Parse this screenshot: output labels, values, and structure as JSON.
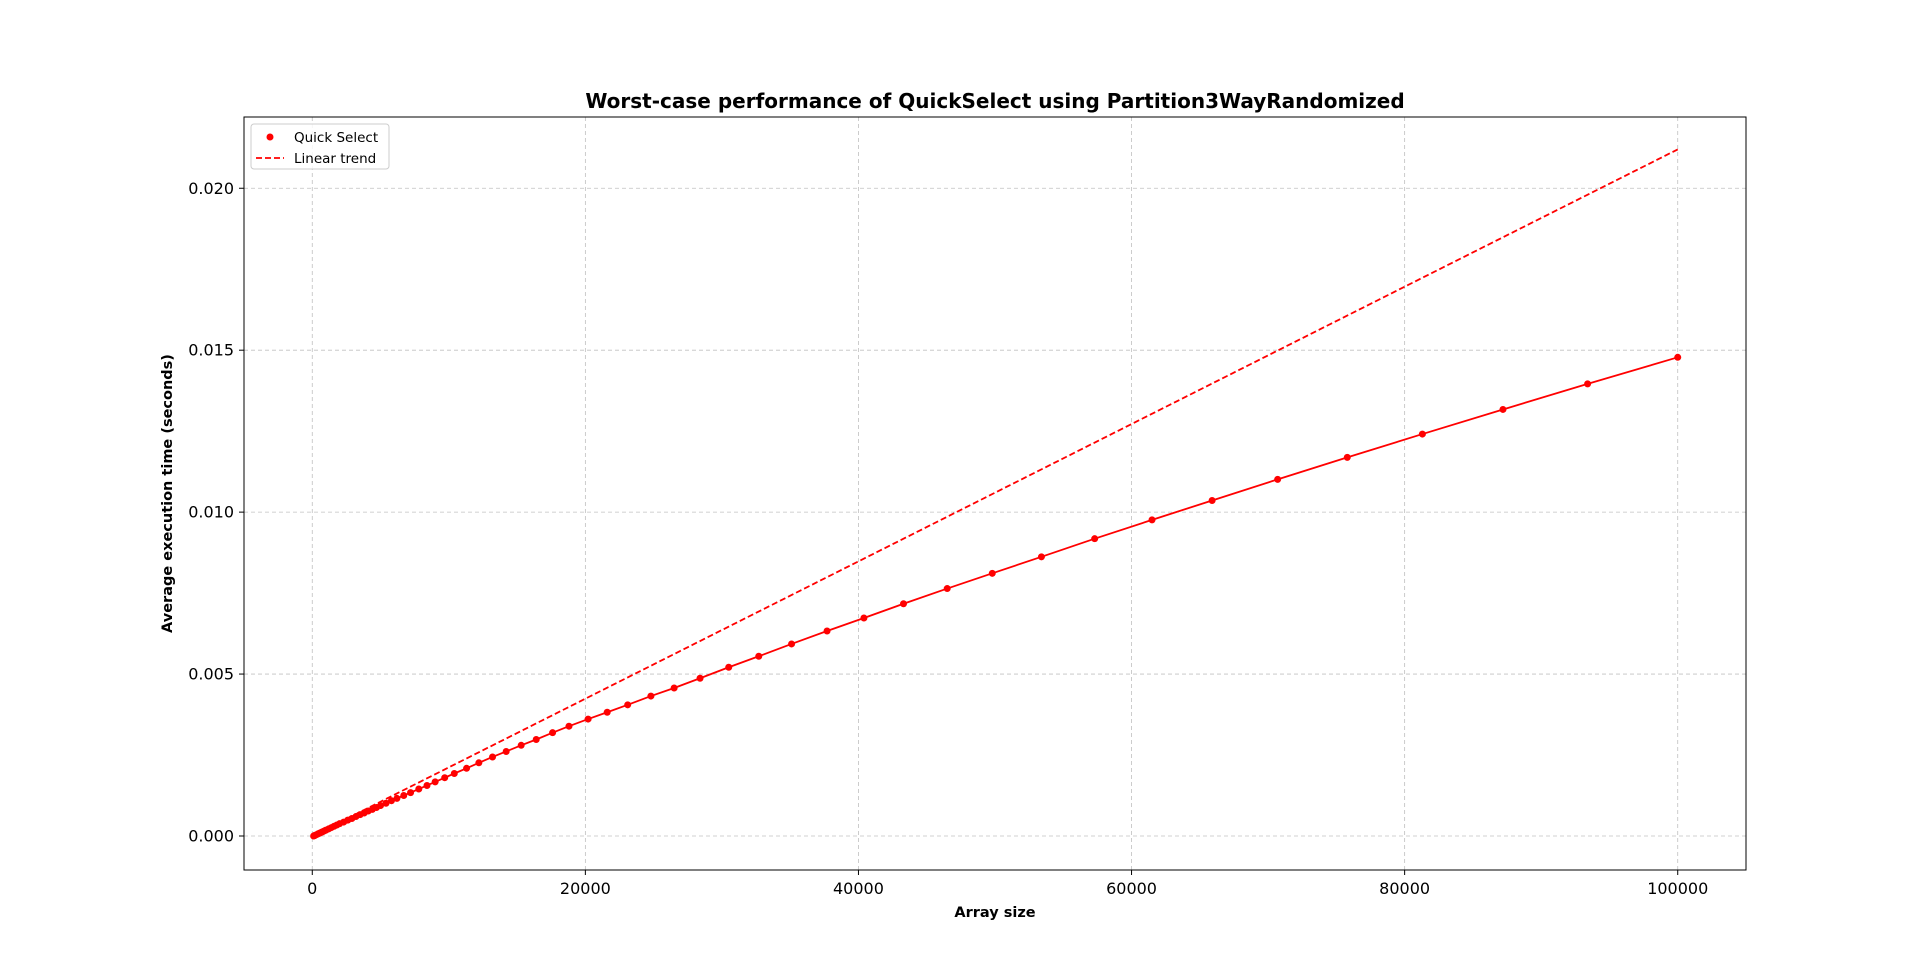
{
  "chart_data": {
    "type": "line",
    "title": "Worst-case performance of QuickSelect using Partition3WayRandomized",
    "xlabel": "Array size",
    "ylabel": "Average execution time (seconds)",
    "xlim": [
      -5000,
      105000
    ],
    "ylim": [
      -0.00105,
      0.0222
    ],
    "xticks": [
      0,
      20000,
      40000,
      60000,
      80000,
      100000
    ],
    "xtick_labels": [
      "0",
      "20000",
      "40000",
      "60000",
      "80000",
      "100000"
    ],
    "yticks": [
      0.0,
      0.005,
      0.01,
      0.015,
      0.02
    ],
    "ytick_labels": [
      "0.000",
      "0.005",
      "0.010",
      "0.015",
      "0.020"
    ],
    "grid": true,
    "legend_position": "top-left",
    "legend": [
      "Quick Select",
      "Linear trend"
    ],
    "series": [
      {
        "name": "Quick Select",
        "style": "line-with-markers",
        "color": "#ff0000",
        "x": [
          100,
          150,
          200,
          300,
          400,
          500,
          600,
          700,
          800,
          900,
          1000,
          1200,
          1400,
          1600,
          1800,
          2000,
          2300,
          2600,
          2900,
          3200,
          3500,
          3800,
          4100,
          4400,
          4700,
          5000,
          5400,
          5800,
          6200,
          6700,
          7200,
          7800,
          8400,
          9000,
          9700,
          10400,
          11300,
          12200,
          13200,
          14200,
          15300,
          16400,
          17600,
          18800,
          20200,
          21600,
          23100,
          24800,
          26500,
          28400,
          30500,
          32700,
          35100,
          37700,
          40400,
          43300,
          46500,
          49800,
          53400,
          57300,
          61500,
          65900,
          70700,
          75800,
          81300,
          87200,
          93400,
          100000
        ],
        "y": [
          0.0,
          1e-05,
          2e-05,
          4e-05,
          6e-05,
          8e-05,
          0.0001,
          0.00012,
          0.00014,
          0.00016,
          0.00018,
          0.00022,
          0.00026,
          0.0003,
          0.00034,
          0.00038,
          0.00043,
          0.00049,
          0.00054,
          0.0006,
          0.00066,
          0.00071,
          0.00077,
          0.00082,
          0.00088,
          0.00094,
          0.00101,
          0.00109,
          0.00116,
          0.00125,
          0.00134,
          0.00145,
          0.00156,
          0.00167,
          0.0018,
          0.00193,
          0.00209,
          0.00226,
          0.00244,
          0.00261,
          0.0028,
          0.00298,
          0.00319,
          0.00339,
          0.00361,
          0.00382,
          0.00405,
          0.00432,
          0.00457,
          0.00487,
          0.00521,
          0.00555,
          0.00593,
          0.00633,
          0.00673,
          0.00717,
          0.00764,
          0.00811,
          0.00862,
          0.00918,
          0.00976,
          0.01036,
          0.01101,
          0.01169,
          0.01241,
          0.01317,
          0.01396,
          0.01478
        ],
        "y_note": ""
      },
      {
        "name": "Linear trend",
        "style": "dashed",
        "color": "#ff0000",
        "x": [
          100,
          100000
        ],
        "y": [
          2e-05,
          0.0212
        ]
      }
    ]
  }
}
